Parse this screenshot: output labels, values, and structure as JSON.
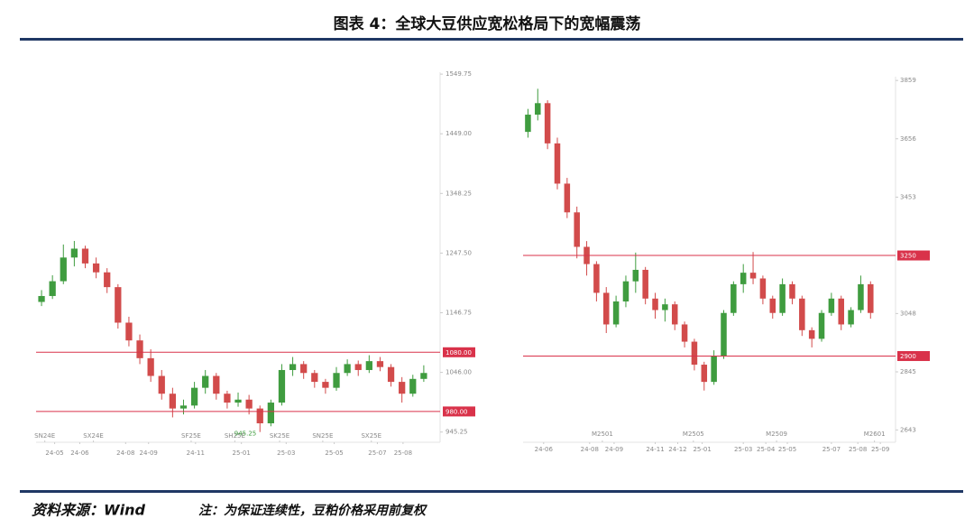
{
  "header": {
    "title": "图表 4：全球大豆供应宽松格局下的宽幅震荡"
  },
  "footer": {
    "source": "资料来源：Wind",
    "note": "注：为保证连续性，豆粕价格采用前复权"
  },
  "chart_data": [
    {
      "type": "candlestick",
      "up_color": "#3f9c3f",
      "down_color": "#d24b4b",
      "hline_color": "#d9324a",
      "xlim": [
        -0.5,
        36
      ],
      "ylim": [
        928,
        1553
      ],
      "yticks": [
        945.25,
        {
          "value": 1046,
          "label": "1046.00"
        },
        1146.75,
        {
          "value": 1247.5,
          "label": "1247.50"
        },
        1348.25,
        {
          "value": 1449,
          "label": "1449.00"
        },
        1549.75
      ],
      "xticks": [
        {
          "value": 1.2,
          "label": "24-05"
        },
        {
          "value": 3.5,
          "label": "24-06"
        },
        {
          "value": 7.7,
          "label": "24-08"
        },
        {
          "value": 9.8,
          "label": "24-09"
        },
        {
          "value": 14.1,
          "label": "24-11"
        },
        {
          "value": 18.3,
          "label": "25-01"
        },
        {
          "value": 22.4,
          "label": "25-03"
        },
        {
          "value": 26.8,
          "label": "25-05"
        },
        {
          "value": 30.75,
          "label": "25-07"
        },
        {
          "value": 33.1,
          "label": "25-08"
        }
      ],
      "contract_ticks": [
        {
          "value": 0.3,
          "label": "SN24E"
        },
        {
          "value": 4.75,
          "label": "SX24E"
        },
        {
          "value": 13.7,
          "label": "SF25E"
        },
        {
          "value": 17.7,
          "label": "SH25E"
        },
        {
          "value": 21.8,
          "label": "SK25E"
        },
        {
          "value": 25.75,
          "label": "SN25E"
        },
        {
          "value": 30.2,
          "label": "SX25E"
        }
      ],
      "hlines": [
        {
          "value": 1080,
          "label": "1080.00"
        },
        {
          "value": 980,
          "label": "980.00"
        }
      ],
      "low_label": "945.25",
      "ohlc": [
        [
          1165,
          1185,
          1158,
          1175
        ],
        [
          1175,
          1210,
          1170,
          1200
        ],
        [
          1200,
          1262,
          1195,
          1240
        ],
        [
          1240,
          1268,
          1225,
          1255
        ],
        [
          1255,
          1260,
          1222,
          1230
        ],
        [
          1230,
          1240,
          1205,
          1215
        ],
        [
          1215,
          1222,
          1180,
          1190
        ],
        [
          1190,
          1195,
          1120,
          1130
        ],
        [
          1130,
          1140,
          1090,
          1100
        ],
        [
          1100,
          1110,
          1060,
          1070
        ],
        [
          1070,
          1085,
          1030,
          1040
        ],
        [
          1040,
          1050,
          1000,
          1010
        ],
        [
          1010,
          1020,
          970,
          985
        ],
        [
          985,
          1000,
          975,
          990
        ],
        [
          990,
          1030,
          985,
          1020
        ],
        [
          1020,
          1050,
          1010,
          1040
        ],
        [
          1040,
          1045,
          1000,
          1010
        ],
        [
          1010,
          1015,
          985,
          995
        ],
        [
          995,
          1012,
          988,
          1000
        ],
        [
          1000,
          1008,
          975,
          985
        ],
        [
          985,
          990,
          945.25,
          960
        ],
        [
          960,
          1000,
          955,
          995
        ],
        [
          995,
          1060,
          990,
          1050
        ],
        [
          1050,
          1072,
          1040,
          1060
        ],
        [
          1060,
          1065,
          1035,
          1045
        ],
        [
          1045,
          1050,
          1020,
          1030
        ],
        [
          1030,
          1035,
          1010,
          1020
        ],
        [
          1020,
          1055,
          1015,
          1045
        ],
        [
          1045,
          1068,
          1040,
          1060
        ],
        [
          1060,
          1066,
          1040,
          1050
        ],
        [
          1050,
          1075,
          1045,
          1065
        ],
        [
          1065,
          1072,
          1048,
          1055
        ],
        [
          1055,
          1060,
          1022,
          1030
        ],
        [
          1030,
          1038,
          995,
          1010
        ],
        [
          1010,
          1042,
          1005,
          1035
        ],
        [
          1035,
          1058,
          1030,
          1045
        ]
      ]
    },
    {
      "type": "candlestick",
      "up_color": "#3f9c3f",
      "down_color": "#d24b4b",
      "hline_color": "#d9324a",
      "xlim": [
        -0.5,
        37
      ],
      "ylim": [
        2600,
        3872
      ],
      "yticks": [
        2643,
        2845,
        3048,
        3453,
        3656,
        3859
      ],
      "xticks": [
        {
          "value": 1.6,
          "label": "24-06"
        },
        {
          "value": 6.3,
          "label": "24-08"
        },
        {
          "value": 8.8,
          "label": "24-09"
        },
        {
          "value": 13,
          "label": "24-11"
        },
        {
          "value": 15.3,
          "label": "24-12"
        },
        {
          "value": 17.8,
          "label": "25-01"
        },
        {
          "value": 22,
          "label": "25-03"
        },
        {
          "value": 24.3,
          "label": "25-04"
        },
        {
          "value": 26.5,
          "label": "25-05"
        },
        {
          "value": 31,
          "label": "25-07"
        },
        {
          "value": 33.7,
          "label": "25-08"
        },
        {
          "value": 36,
          "label": "25-09"
        }
      ],
      "contract_ticks": [
        {
          "value": 7.6,
          "label": "M2501"
        },
        {
          "value": 16.9,
          "label": "M2505"
        },
        {
          "value": 25.4,
          "label": "M2509"
        },
        {
          "value": 35.4,
          "label": "M2601"
        }
      ],
      "hlines": [
        {
          "value": 3250,
          "label": "3250"
        },
        {
          "value": 2900,
          "label": "2900"
        }
      ],
      "ohlc": [
        [
          3680,
          3760,
          3660,
          3740
        ],
        [
          3740,
          3830,
          3720,
          3780
        ],
        [
          3780,
          3790,
          3620,
          3640
        ],
        [
          3640,
          3660,
          3480,
          3500
        ],
        [
          3500,
          3520,
          3380,
          3400
        ],
        [
          3400,
          3420,
          3240,
          3280
        ],
        [
          3280,
          3300,
          3180,
          3220
        ],
        [
          3220,
          3230,
          3090,
          3120
        ],
        [
          3120,
          3140,
          2980,
          3010
        ],
        [
          3010,
          3110,
          3000,
          3090
        ],
        [
          3090,
          3180,
          3070,
          3160
        ],
        [
          3160,
          3260,
          3120,
          3200
        ],
        [
          3200,
          3210,
          3080,
          3100
        ],
        [
          3100,
          3120,
          3030,
          3060
        ],
        [
          3060,
          3100,
          3020,
          3080
        ],
        [
          3080,
          3090,
          2990,
          3010
        ],
        [
          3010,
          3020,
          2930,
          2950
        ],
        [
          2950,
          2960,
          2850,
          2870
        ],
        [
          2870,
          2880,
          2780,
          2810
        ],
        [
          2810,
          2920,
          2800,
          2900
        ],
        [
          2900,
          3060,
          2890,
          3050
        ],
        [
          3050,
          3160,
          3040,
          3150
        ],
        [
          3150,
          3220,
          3120,
          3190
        ],
        [
          3190,
          3262,
          3150,
          3170
        ],
        [
          3170,
          3180,
          3080,
          3100
        ],
        [
          3100,
          3110,
          3030,
          3050
        ],
        [
          3050,
          3170,
          3040,
          3150
        ],
        [
          3150,
          3160,
          3080,
          3100
        ],
        [
          3100,
          3110,
          2970,
          2990
        ],
        [
          2990,
          3000,
          2930,
          2960
        ],
        [
          2960,
          3060,
          2950,
          3050
        ],
        [
          3050,
          3120,
          3040,
          3100
        ],
        [
          3100,
          3110,
          2990,
          3010
        ],
        [
          3010,
          3070,
          3000,
          3060
        ],
        [
          3060,
          3180,
          3050,
          3150
        ],
        [
          3150,
          3160,
          3030,
          3050
        ]
      ]
    }
  ]
}
